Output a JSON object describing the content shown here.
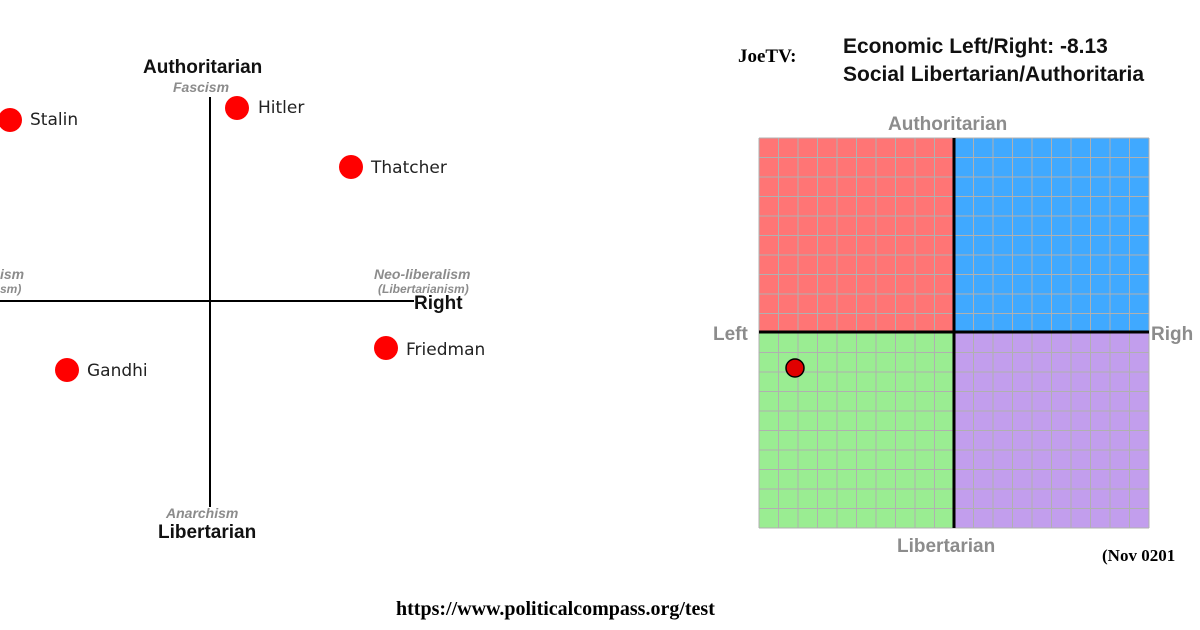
{
  "left_diagram": {
    "top_axis_label": "Authoritarian",
    "top_school": "Fascism",
    "bottom_axis_label": "Libertarian",
    "bottom_school": "Anarchism",
    "right_axis_label": "Right",
    "right_school": "Neo-liberalism",
    "right_school_sub": "(Libertarianism)",
    "left_school_partial": "ism",
    "left_school_sub_partial": "sm)",
    "figures": [
      {
        "name": "Stalin"
      },
      {
        "name": "Hitler"
      },
      {
        "name": "Thatcher"
      },
      {
        "name": "Gandhi"
      },
      {
        "name": "Friedman"
      }
    ],
    "dot_color": "#ff0000"
  },
  "result_header": {
    "user": "JoeTV:",
    "economic_line": "Economic Left/Right: -8.13",
    "social_line": "Social Libertarian/Authoritaria"
  },
  "compass_grid": {
    "top_label": "Authoritarian",
    "bottom_label": "Libertarian",
    "left_label": "Left",
    "right_label": "Righ",
    "quadrant_colors": {
      "top_left": "#ff7575",
      "top_right": "#40a9ff",
      "bottom_left": "#9aed92",
      "bottom_right": "#c29eed"
    },
    "user_dot_color": "#e00000",
    "date_note": "(Nov 0201"
  },
  "footer": {
    "url": "https://www.politicalcompass.org/test"
  }
}
